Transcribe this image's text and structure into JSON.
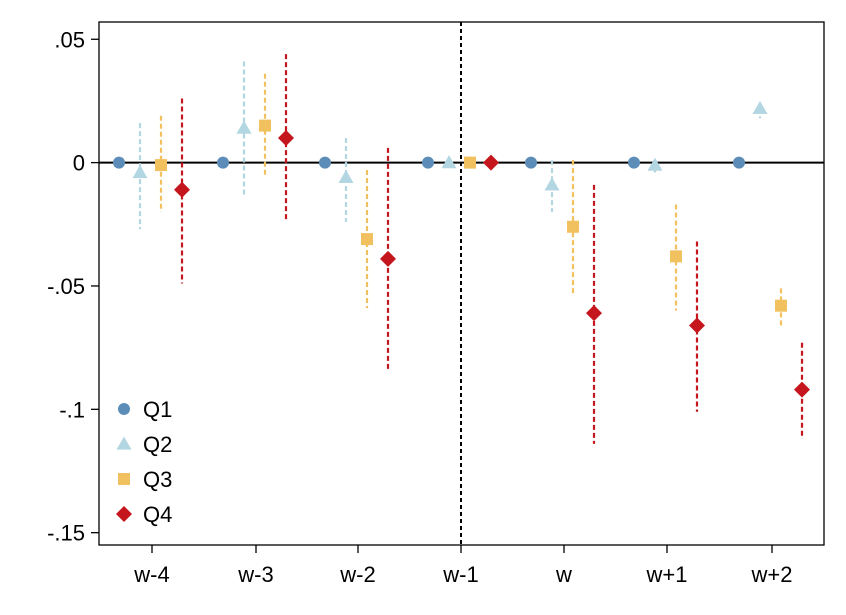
{
  "chart_data": {
    "type": "scatter",
    "title": "",
    "xlabel": "",
    "ylabel": "",
    "categories": [
      "w-4",
      "w-3",
      "w-2",
      "w-1",
      "w",
      "w+1",
      "w+2"
    ],
    "ylim": [
      -0.155,
      0.057
    ],
    "yticks": [
      0.05,
      0,
      -0.05,
      -0.1,
      -0.15
    ],
    "ytick_labels": [
      ".05",
      "0",
      "-.05",
      "-.1",
      "-.15"
    ],
    "reference_line_y": 0,
    "vertical_reference_category": "w-1",
    "grid": false,
    "legend_position": "bottom-left",
    "series": [
      {
        "name": "Q1",
        "color": "#5b8db8",
        "marker": "circle",
        "values": [
          0,
          0,
          0,
          0,
          0,
          0,
          0
        ],
        "ci_low": [
          null,
          null,
          null,
          null,
          null,
          null,
          null
        ],
        "ci_high": [
          null,
          null,
          null,
          null,
          null,
          null,
          null
        ]
      },
      {
        "name": "Q2",
        "color": "#b3d6e3",
        "marker": "triangle",
        "values": [
          -0.004,
          0.014,
          -0.006,
          0,
          -0.009,
          -0.001,
          0.022
        ],
        "ci_low": [
          -0.027,
          -0.013,
          -0.024,
          null,
          -0.02,
          -0.004,
          0.018
        ],
        "ci_high": [
          0.016,
          0.041,
          0.01,
          null,
          0.001,
          0.001,
          0.022
        ]
      },
      {
        "name": "Q3",
        "color": "#f2c15f",
        "marker": "square",
        "values": [
          -0.001,
          0.015,
          -0.031,
          0,
          -0.026,
          -0.038,
          -0.058
        ],
        "ci_low": [
          -0.02,
          -0.006,
          -0.059,
          null,
          -0.053,
          -0.06,
          -0.066
        ],
        "ci_high": [
          0.019,
          0.036,
          -0.003,
          null,
          0.001,
          -0.017,
          -0.051
        ]
      },
      {
        "name": "Q4",
        "color": "#c4161c",
        "marker": "diamond",
        "values": [
          -0.011,
          0.01,
          -0.039,
          0,
          -0.061,
          -0.066,
          -0.092
        ],
        "ci_low": [
          -0.049,
          -0.024,
          -0.084,
          null,
          -0.114,
          -0.101,
          -0.112
        ],
        "ci_high": [
          0.026,
          0.044,
          0.006,
          null,
          -0.009,
          -0.032,
          -0.073
        ]
      }
    ]
  }
}
